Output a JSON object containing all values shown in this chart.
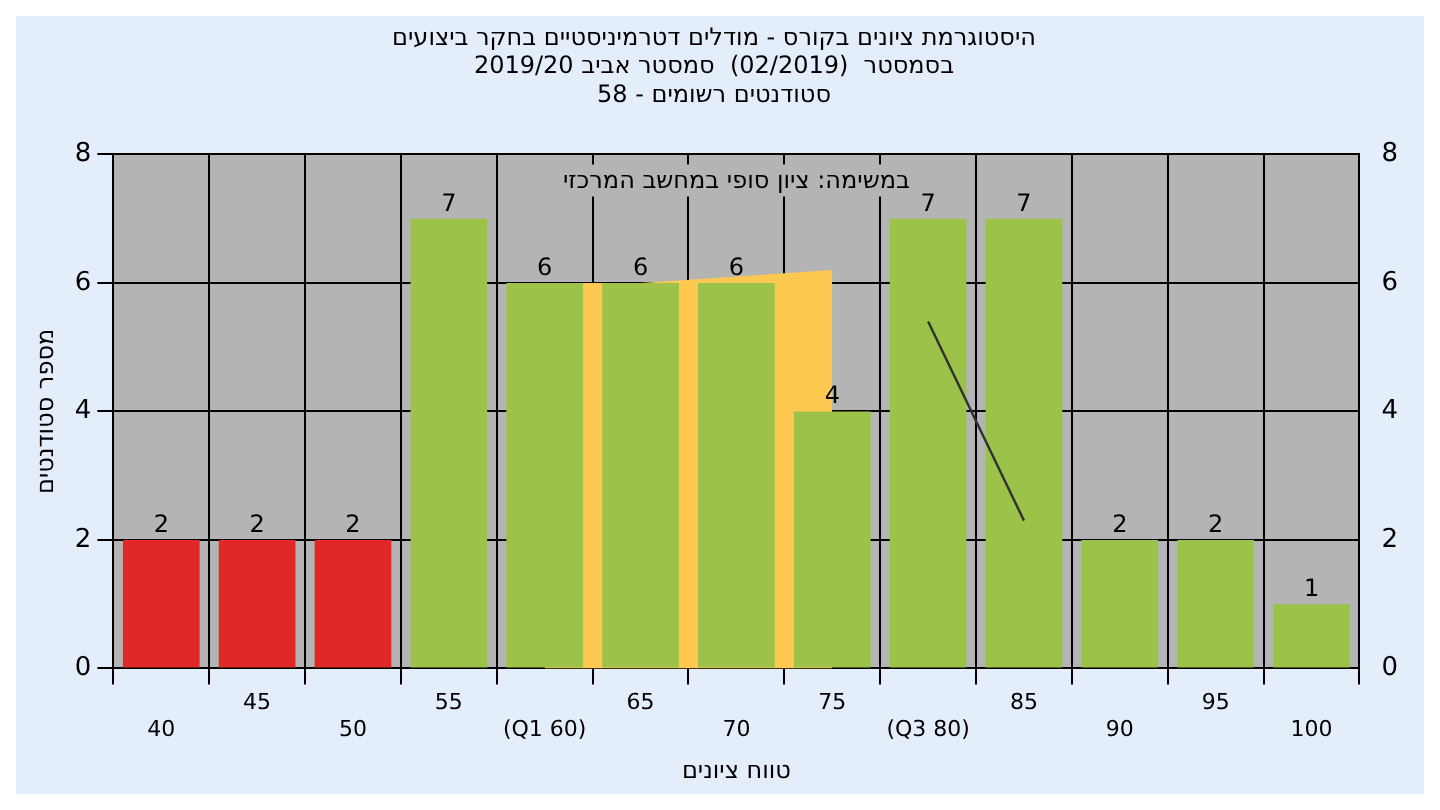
{
  "chart_data": {
    "type": "bar",
    "title": "היסטוגרמת ציונים בקורס - מודלים דטרמיניסטיים בחקר ביצועים",
    "subtitle": "בסמסטר  (02/2019)  סמסטר אביב 2019/20\nסטודנטים רשומים - 58",
    "xlabel": "טווח ציונים",
    "ylabel": "מספר סטודנטים",
    "annotations": [
      "במשימה: ציון סופי במחשב המרכזי"
    ],
    "categories": [
      "40",
      "45",
      "50",
      "55",
      "(Q1 60)",
      "65",
      "70",
      "75",
      "(Q3 80)",
      "85",
      "90",
      "95",
      "100"
    ],
    "series": [
      {
        "colors": [
          "#e02828",
          "#e02828",
          "#e02828",
          "#9cc24a",
          "#9cc24a",
          "#9cc24a",
          "#9cc24a",
          "#9cc24a",
          "#9cc24a",
          "#9cc24a",
          "#9cc24a",
          "#9cc24a",
          "#9cc24a"
        ],
        "values": [
          2,
          2,
          2,
          7,
          6,
          6,
          6,
          4,
          7,
          7,
          2,
          2,
          1
        ],
        "value_labels": [
          "2",
          "2",
          "2",
          "7",
          "6",
          "6",
          "6",
          "4",
          "7",
          "7",
          "2",
          "2",
          "1"
        ]
      },
      {
        "type": "area",
        "color": "#ffc850",
        "values": [
          null,
          null,
          null,
          null,
          6,
          6,
          null,
          6.2,
          null,
          null,
          null,
          null,
          null
        ]
      },
      {
        "type": "line",
        "color": "#303030",
        "values": [
          null,
          null,
          null,
          null,
          null,
          null,
          null,
          null,
          5.4,
          2.3,
          null,
          null,
          null
        ]
      }
    ],
    "ylim": [
      0,
      8
    ],
    "yticks": [
      0,
      2,
      4,
      6,
      8
    ],
    "y2lim": [
      0,
      8
    ],
    "y2ticks": [
      0,
      2,
      4,
      6,
      8
    ],
    "grid": true,
    "legend": false
  }
}
